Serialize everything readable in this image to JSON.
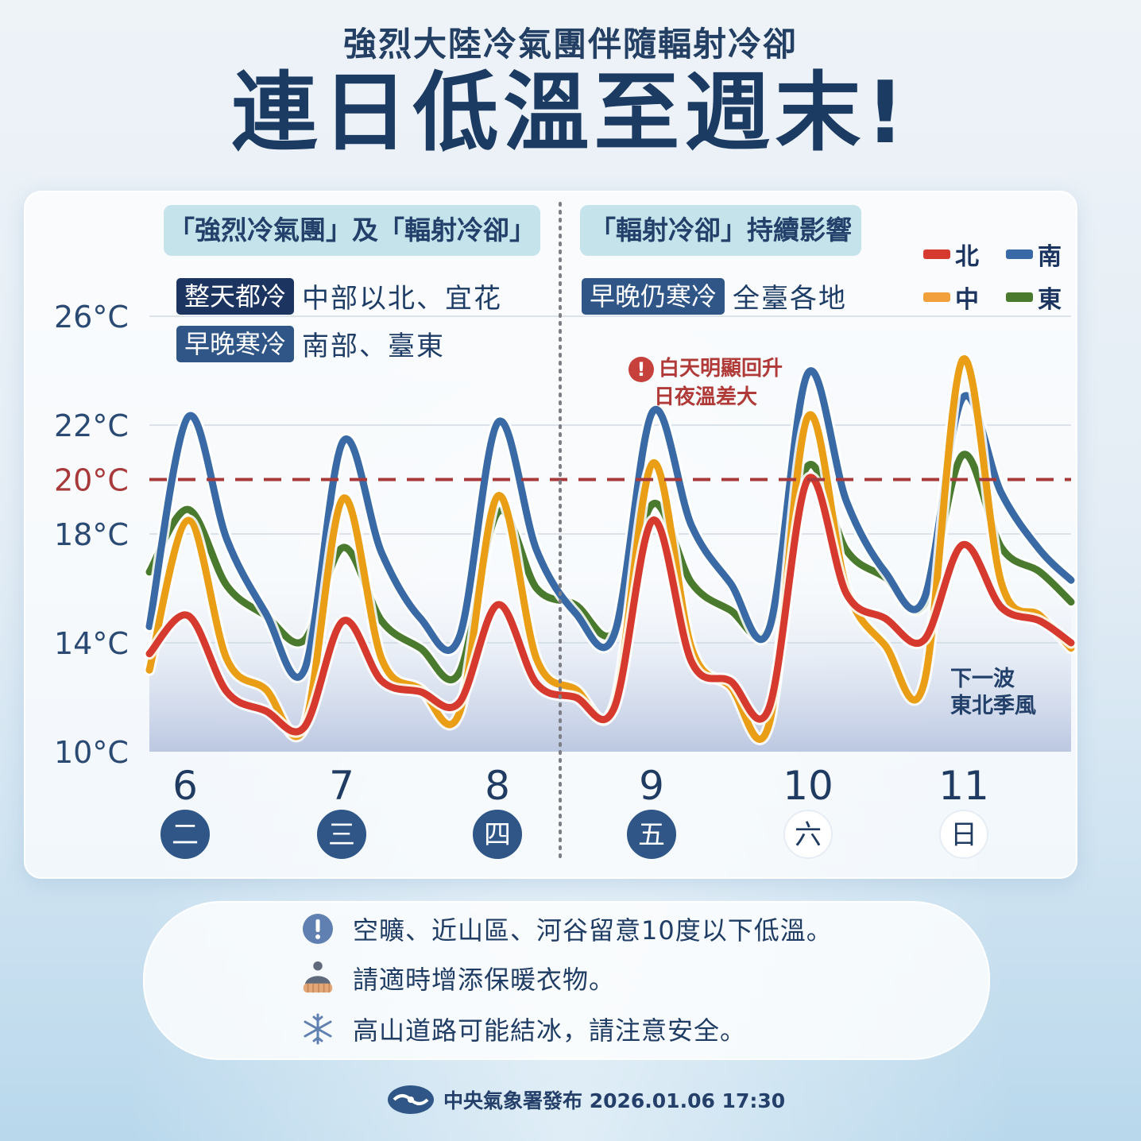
{
  "header": {
    "subtitle": "強烈大陸冷氣團伴隨輻射冷卻",
    "title": "連日低溫至週末!"
  },
  "panel": {
    "left_tag": "「強烈冷氣團」及「輻射冷卻」",
    "right_tag": "「輻射冷卻」持續影響",
    "left_rows": [
      {
        "chip": "整天都冷",
        "text": "中部以北、宜花"
      },
      {
        "chip": "早晚寒冷",
        "text": "南部、臺東"
      }
    ],
    "right_rows": [
      {
        "chip": "早晚仍寒冷",
        "text": "全臺各地"
      }
    ],
    "callout": [
      "白天明顯回升",
      "日夜溫差大"
    ],
    "next_wave": [
      "下一波",
      "東北季風"
    ]
  },
  "chart_data": {
    "type": "line",
    "y_ticks": [
      "26°C",
      "22°C",
      "20°C",
      "18°C",
      "14°C",
      "10°C"
    ],
    "y_tick_values": [
      26,
      22,
      20,
      18,
      14,
      10
    ],
    "ylim": [
      10,
      26
    ],
    "reference_line": {
      "value": 20,
      "label": "20°C",
      "color": "#a8393a",
      "style": "dashed"
    },
    "days": [
      {
        "date": "6",
        "weekday": "二",
        "highlight": false
      },
      {
        "date": "7",
        "weekday": "三",
        "highlight": false
      },
      {
        "date": "8",
        "weekday": "四",
        "highlight": false
      },
      {
        "date": "9",
        "weekday": "五",
        "highlight": false
      },
      {
        "date": "10",
        "weekday": "六",
        "highlight": true
      },
      {
        "date": "11",
        "weekday": "日",
        "highlight": true
      }
    ],
    "x": [
      5.75,
      6.0,
      6.25,
      6.5,
      6.75,
      7.0,
      7.25,
      7.5,
      7.75,
      8.0,
      8.25,
      8.5,
      8.75,
      9.0,
      9.25,
      9.5,
      9.75,
      10.0,
      10.25,
      10.5,
      10.75,
      11.0,
      11.25,
      11.5,
      11.7
    ],
    "series": [
      {
        "name": "南",
        "color": "#3a6aa6",
        "values": [
          14.6,
          22.3,
          17.8,
          15.1,
          13.0,
          21.4,
          17.3,
          14.9,
          14.2,
          22.1,
          17.4,
          15.1,
          14.3,
          22.5,
          18.3,
          16.2,
          14.5,
          23.9,
          19.2,
          16.6,
          15.6,
          23.0,
          19.5,
          17.4,
          16.3
        ]
      },
      {
        "name": "中",
        "color": "#e99e16",
        "values": [
          13.0,
          18.5,
          13.4,
          12.3,
          10.9,
          19.3,
          13.4,
          12.3,
          11.4,
          19.4,
          13.4,
          12.3,
          11.7,
          20.6,
          13.8,
          12.4,
          11.0,
          22.3,
          16.0,
          13.9,
          12.5,
          24.4,
          16.2,
          15.0,
          13.8
        ]
      },
      {
        "name": "北",
        "color": "#d63a2f",
        "values": [
          13.6,
          15.0,
          12.2,
          11.5,
          10.9,
          14.8,
          12.6,
          12.2,
          11.8,
          15.4,
          12.5,
          12.0,
          11.6,
          18.5,
          13.3,
          12.6,
          11.6,
          20.0,
          15.8,
          14.9,
          14.1,
          17.6,
          15.3,
          14.8,
          14.0
        ]
      },
      {
        "name": "東",
        "color": "#4a7a2e",
        "values": [
          16.6,
          18.9,
          16.1,
          15.0,
          14.1,
          17.5,
          14.8,
          13.8,
          12.9,
          18.8,
          16.0,
          15.4,
          14.4,
          19.1,
          16.2,
          15.2,
          14.5,
          20.5,
          17.4,
          16.4,
          15.4,
          20.9,
          17.5,
          16.6,
          15.5
        ]
      }
    ],
    "legend": {
      "placement": "top-right",
      "entries": [
        "北",
        "南",
        "中",
        "東"
      ]
    }
  },
  "tips": [
    {
      "icon": "exclamation-icon",
      "text": "空曠、近山區、河谷留意10度以下低溫。"
    },
    {
      "icon": "beanie-hat-icon",
      "text": "請適時增添保暖衣物。"
    },
    {
      "icon": "snowflake-icon",
      "text": "高山道路可能結冰，請注意安全。"
    }
  ],
  "footer": {
    "text": "中央氣象署發布 2026.01.06 17:30"
  }
}
